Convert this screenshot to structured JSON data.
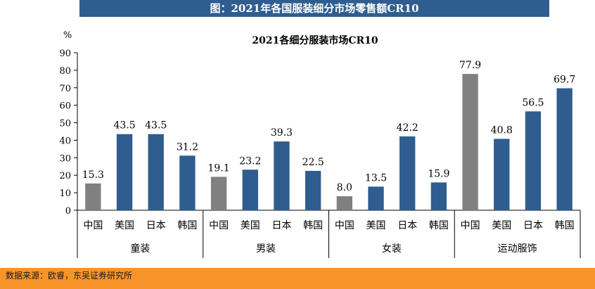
{
  "header": {
    "title": "图：2021年各国服装细分市场零售额CR10"
  },
  "footer": {
    "source": "数据来源：欧睿，东吴证券研究所"
  },
  "colors": {
    "highlight": "#808080",
    "bar": "#2f5d8f",
    "header": "#2f5d8f",
    "footer": "#f7942a"
  },
  "chart_data": {
    "type": "bar",
    "title": "2021各细分服装市场CR10",
    "ylabel": "%",
    "ylim": [
      0,
      90
    ],
    "yticks": [
      "0",
      "10",
      "20",
      "30",
      "40",
      "50",
      "60",
      "70",
      "80",
      "90"
    ],
    "grid": false,
    "highlight_category": "中国",
    "groups": [
      {
        "name": "童装",
        "categories": [
          "中国",
          "美国",
          "日本",
          "韩国"
        ],
        "values": [
          15.3,
          43.5,
          43.5,
          31.2
        ],
        "labels": [
          "15.3",
          "43.5",
          "43.5",
          "31.2"
        ]
      },
      {
        "name": "男装",
        "categories": [
          "中国",
          "美国",
          "日本",
          "韩国"
        ],
        "values": [
          19.1,
          23.2,
          39.3,
          22.5
        ],
        "labels": [
          "19.1",
          "23.2",
          "39.3",
          "22.5"
        ]
      },
      {
        "name": "女装",
        "categories": [
          "中国",
          "美国",
          "日本",
          "韩国"
        ],
        "values": [
          8.0,
          13.5,
          42.2,
          15.9
        ],
        "labels": [
          "8.0",
          "13.5",
          "42.2",
          "15.9"
        ]
      },
      {
        "name": "运动服饰",
        "categories": [
          "中国",
          "美国",
          "日本",
          "韩国"
        ],
        "values": [
          77.9,
          40.8,
          56.5,
          69.7
        ],
        "labels": [
          "77.9",
          "40.8",
          "56.5",
          "69.7"
        ]
      }
    ]
  }
}
